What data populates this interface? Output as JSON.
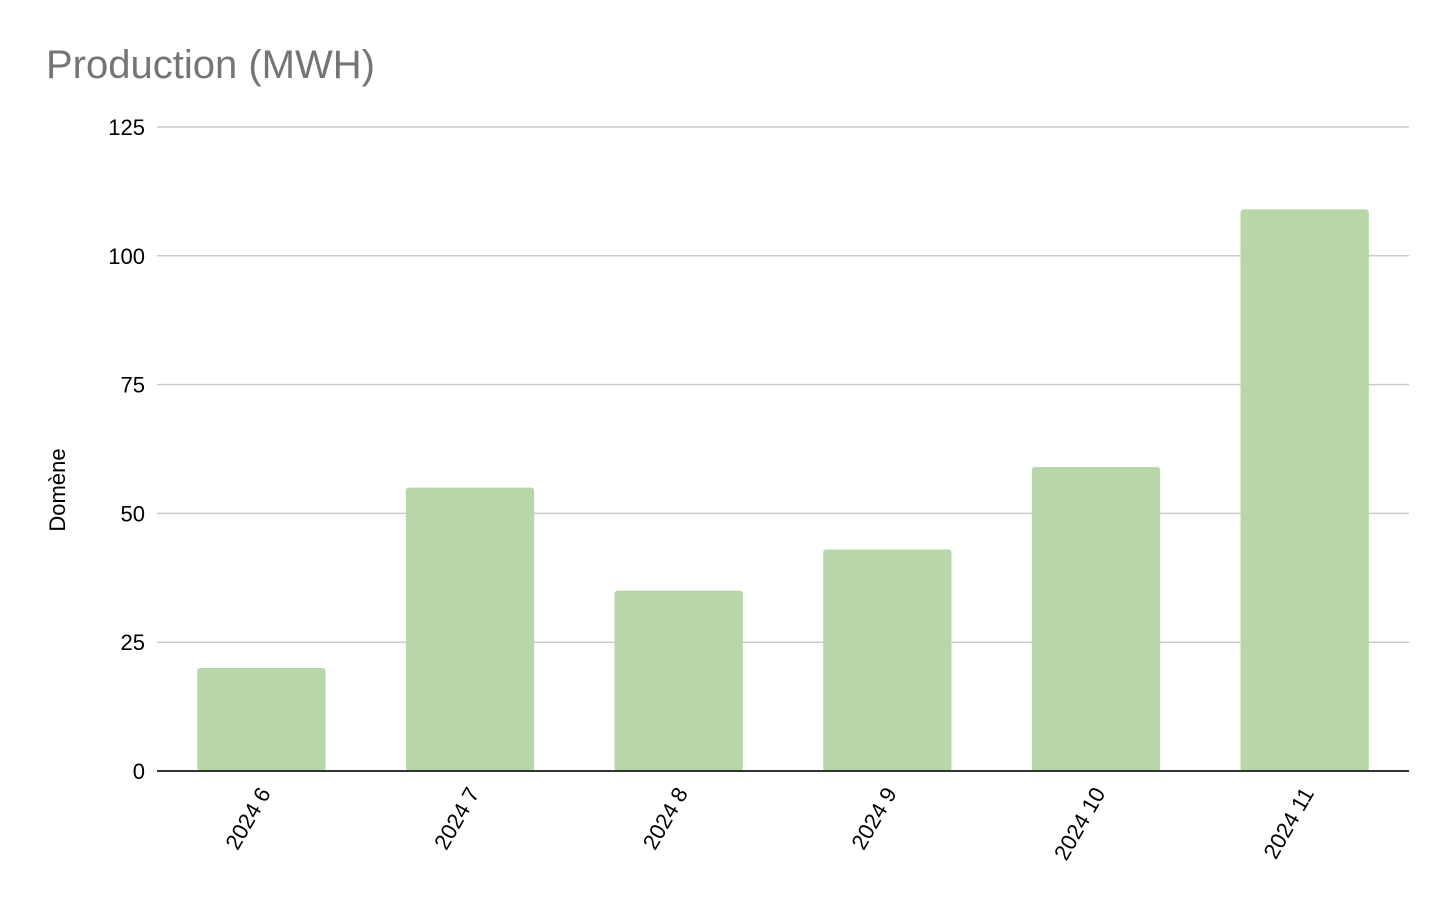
{
  "chart_data": {
    "type": "bar",
    "title": "Production (MWH)",
    "ylabel": "Domène",
    "xlabel": "",
    "categories": [
      "2024 6",
      "2024 7",
      "2024 8",
      "2024 9",
      "2024 10",
      "2024 11"
    ],
    "values": [
      20,
      55,
      35,
      43,
      59,
      109
    ],
    "ylim": [
      0,
      125
    ],
    "yticks": [
      "0",
      "25",
      "50",
      "75",
      "100",
      "125"
    ],
    "grid": true,
    "legend": "none",
    "colors": {
      "bar": "#b7d7a8",
      "grid": "#cccccc",
      "axis": "#333333",
      "title": "#757575"
    }
  }
}
